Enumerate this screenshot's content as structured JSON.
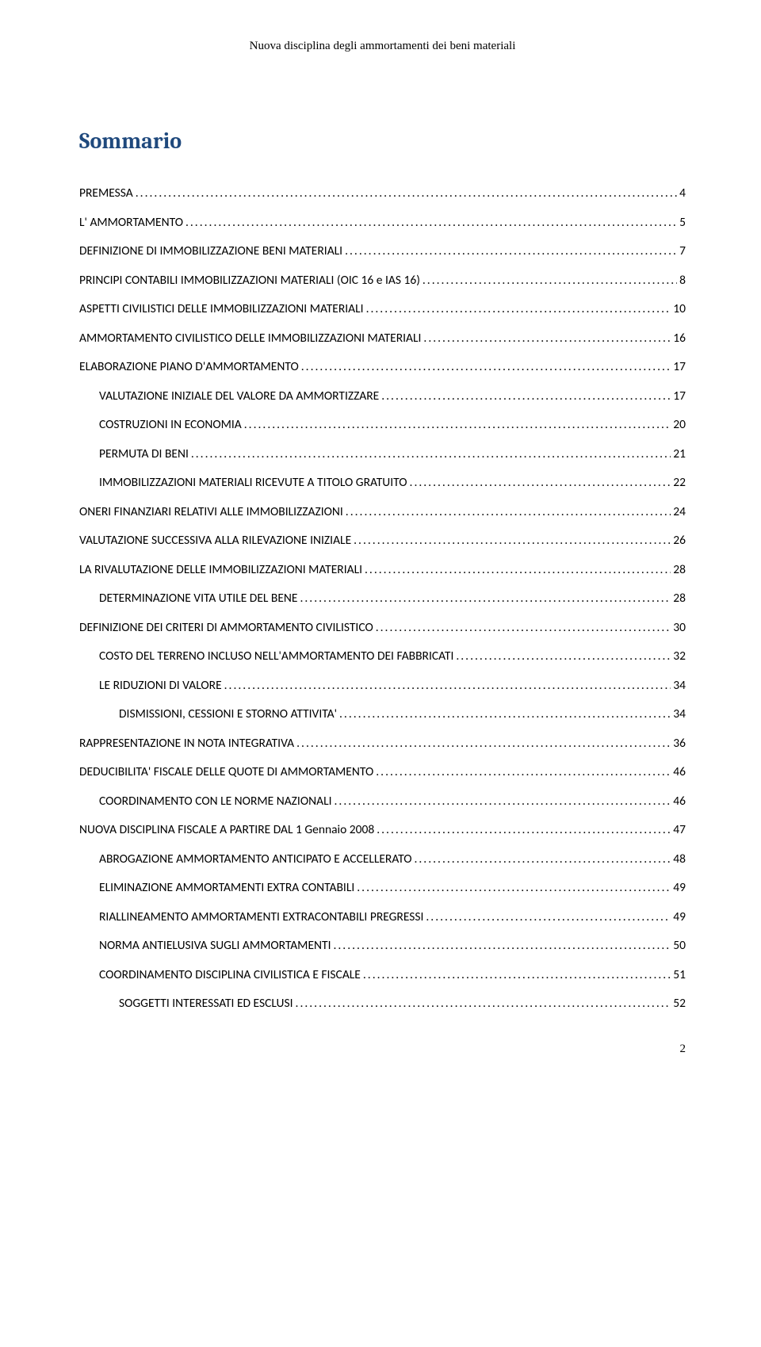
{
  "header": "Nuova disciplina degli ammortamenti dei beni materiali",
  "title": "Sommario",
  "title_color": "#1f497d",
  "page_number": "2",
  "entries": [
    {
      "label": "PREMESSA",
      "page": "4",
      "indent": 0
    },
    {
      "label": "L' AMMORTAMENTO",
      "page": "5",
      "indent": 0
    },
    {
      "label": "DEFINIZIONE DI IMMOBILIZZAZIONE BENI MATERIALI",
      "page": "7",
      "indent": 0
    },
    {
      "label": "PRINCIPI CONTABILI IMMOBILIZZAZIONI MATERIALI (OIC 16 e IAS 16)",
      "page": "8",
      "indent": 0
    },
    {
      "label": "ASPETTI CIVILISTICI DELLE IMMOBILIZZAZIONI MATERIALI",
      "page": "10",
      "indent": 0
    },
    {
      "label": "AMMORTAMENTO CIVILISTICO DELLE IMMOBILIZZAZIONI MATERIALI",
      "page": "16",
      "indent": 0
    },
    {
      "label": "ELABORAZIONE PIANO D'AMMORTAMENTO",
      "page": "17",
      "indent": 0
    },
    {
      "label": "VALUTAZIONE INIZIALE DEL VALORE DA AMMORTIZZARE",
      "page": "17",
      "indent": 1
    },
    {
      "label": "COSTRUZIONI IN ECONOMIA",
      "page": "20",
      "indent": 1
    },
    {
      "label": "PERMUTA DI BENI",
      "page": "21",
      "indent": 1
    },
    {
      "label": "IMMOBILIZZAZIONI MATERIALI RICEVUTE A TITOLO GRATUITO",
      "page": "22",
      "indent": 1
    },
    {
      "label": "ONERI FINANZIARI RELATIVI ALLE IMMOBILIZZAZIONI",
      "page": "24",
      "indent": 0
    },
    {
      "label": "VALUTAZIONE SUCCESSIVA ALLA RILEVAZIONE INIZIALE",
      "page": "26",
      "indent": 0
    },
    {
      "label": "LA RIVALUTAZIONE DELLE IMMOBILIZZAZIONI MATERIALI",
      "page": "28",
      "indent": 0
    },
    {
      "label": "DETERMINAZIONE VITA UTILE DEL BENE",
      "page": "28",
      "indent": 1
    },
    {
      "label": "DEFINIZIONE DEI CRITERI DI AMMORTAMENTO CIVILISTICO",
      "page": "30",
      "indent": 0
    },
    {
      "label": "COSTO DEL TERRENO INCLUSO NELL'AMMORTAMENTO DEI FABBRICATI",
      "page": "32",
      "indent": 1
    },
    {
      "label": "LE RIDUZIONI DI VALORE",
      "page": "34",
      "indent": 1
    },
    {
      "label": "DISMISSIONI, CESSIONI E STORNO ATTIVITA'",
      "page": "34",
      "indent": 2
    },
    {
      "label": "RAPPRESENTAZIONE IN NOTA INTEGRATIVA",
      "page": "36",
      "indent": 0
    },
    {
      "label": "DEDUCIBILITA' FISCALE DELLE QUOTE DI AMMORTAMENTO",
      "page": "46",
      "indent": 0
    },
    {
      "label": "COORDINAMENTO CON LE NORME NAZIONALI",
      "page": "46",
      "indent": 1
    },
    {
      "label": "NUOVA DISCIPLINA FISCALE A PARTIRE DAL 1 Gennaio 2008",
      "page": "47",
      "indent": 0
    },
    {
      "label": "ABROGAZIONE AMMORTAMENTO ANTICIPATO E ACCELLERATO",
      "page": "48",
      "indent": 1
    },
    {
      "label": "ELIMINAZIONE AMMORTAMENTI EXTRA CONTABILI",
      "page": "49",
      "indent": 1
    },
    {
      "label": "RIALLINEAMENTO AMMORTAMENTI EXTRACONTABILI PREGRESSI",
      "page": "49",
      "indent": 1
    },
    {
      "label": "NORMA ANTIELUSIVA SUGLI AMMORTAMENTI",
      "page": "50",
      "indent": 1
    },
    {
      "label": "COORDINAMENTO DISCIPLINA CIVILISTICA E FISCALE",
      "page": "51",
      "indent": 1
    },
    {
      "label": "SOGGETTI INTERESSATI ED ESCLUSI",
      "page": "52",
      "indent": 2
    }
  ]
}
